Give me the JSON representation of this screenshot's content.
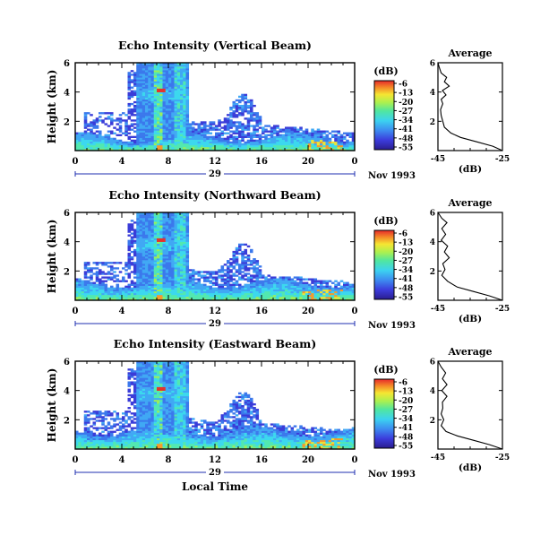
{
  "chart_data": [
    {
      "type": "heatmap",
      "title": "Echo Intensity (Vertical Beam)",
      "ylabel": "Height (km)",
      "yticks": [
        "2",
        "4",
        "6"
      ],
      "xticks": [
        "0",
        "4",
        "8",
        "12",
        "16",
        "20",
        "0"
      ],
      "xlim": [
        0,
        24
      ],
      "ylim": [
        0,
        6
      ],
      "date_label": "29",
      "month_label": "Nov 1993",
      "colorbar": {
        "unit": "(dB)",
        "ticks": [
          "-6",
          "-13",
          "-20",
          "-27",
          "-34",
          "-41",
          "-48",
          "-55"
        ]
      },
      "profile": {
        "title": "Average",
        "xlabel": "(dB)",
        "xticks": [
          "-45",
          "-25"
        ],
        "xlim": [
          -45,
          -25
        ],
        "yticks": [
          "2",
          "4",
          "6"
        ],
        "ylim": [
          0,
          6
        ],
        "points": [
          [
            -25,
            0
          ],
          [
            -28,
            0.3
          ],
          [
            -33,
            0.6
          ],
          [
            -38,
            0.9
          ],
          [
            -41,
            1.2
          ],
          [
            -43,
            1.6
          ],
          [
            -43.5,
            2.0
          ],
          [
            -44,
            2.4
          ],
          [
            -44.2,
            2.8
          ],
          [
            -43.5,
            3.2
          ],
          [
            -44,
            3.5
          ],
          [
            -42.5,
            3.8
          ],
          [
            -43.6,
            4.1
          ],
          [
            -41.5,
            4.4
          ],
          [
            -43,
            4.7
          ],
          [
            -42.3,
            5.0
          ],
          [
            -44,
            5.3
          ],
          [
            -44.6,
            5.7
          ],
          [
            -45,
            6.0
          ]
        ]
      }
    },
    {
      "type": "heatmap",
      "title": "Echo Intensity (Northward Beam)",
      "ylabel": "Height (km)",
      "yticks": [
        "2",
        "4",
        "6"
      ],
      "xticks": [
        "0",
        "4",
        "8",
        "12",
        "16",
        "20",
        "0"
      ],
      "xlim": [
        0,
        24
      ],
      "ylim": [
        0,
        6
      ],
      "date_label": "29",
      "month_label": "Nov 1993",
      "colorbar": {
        "unit": "(dB)",
        "ticks": [
          "-6",
          "-13",
          "-20",
          "-27",
          "-34",
          "-41",
          "-48",
          "-55"
        ]
      },
      "profile": {
        "title": "Average",
        "xlabel": "(dB)",
        "xticks": [
          "-45",
          "-25"
        ],
        "xlim": [
          -45,
          -25
        ],
        "yticks": [
          "2",
          "4",
          "6"
        ],
        "ylim": [
          0,
          6
        ],
        "points": [
          [
            -25,
            0
          ],
          [
            -29,
            0.3
          ],
          [
            -34,
            0.6
          ],
          [
            -39,
            0.9
          ],
          [
            -42,
            1.3
          ],
          [
            -43.8,
            1.7
          ],
          [
            -42.8,
            2.1
          ],
          [
            -43.5,
            2.5
          ],
          [
            -41.5,
            2.9
          ],
          [
            -43,
            3.3
          ],
          [
            -42,
            3.7
          ],
          [
            -44,
            4.1
          ],
          [
            -42.6,
            4.5
          ],
          [
            -43.8,
            4.9
          ],
          [
            -42.2,
            5.3
          ],
          [
            -43.8,
            5.6
          ],
          [
            -45,
            6.0
          ]
        ]
      }
    },
    {
      "type": "heatmap",
      "title": "Echo Intensity (Eastward Beam)",
      "ylabel": "Height (km)",
      "yticks": [
        "2",
        "4",
        "6"
      ],
      "xticks": [
        "0",
        "4",
        "8",
        "12",
        "16",
        "20",
        "0"
      ],
      "xlim": [
        0,
        24
      ],
      "ylim": [
        0,
        6
      ],
      "date_label": "29",
      "month_label": "Nov 1993",
      "xlabel": "Local Time",
      "colorbar": {
        "unit": "(dB)",
        "ticks": [
          "-6",
          "-13",
          "-20",
          "-27",
          "-34",
          "-41",
          "-48",
          "-55"
        ]
      },
      "profile": {
        "title": "Average",
        "xlabel": "(dB)",
        "xticks": [
          "-45",
          "-25"
        ],
        "xlim": [
          -45,
          -25
        ],
        "yticks": [
          "2",
          "4",
          "6"
        ],
        "ylim": [
          0,
          6
        ],
        "points": [
          [
            -25,
            0
          ],
          [
            -29,
            0.3
          ],
          [
            -34,
            0.6
          ],
          [
            -39,
            0.9
          ],
          [
            -42.5,
            1.2
          ],
          [
            -44,
            1.6
          ],
          [
            -43.2,
            2.0
          ],
          [
            -44,
            2.4
          ],
          [
            -43.5,
            2.8
          ],
          [
            -43.6,
            3.2
          ],
          [
            -42.2,
            3.6
          ],
          [
            -43.8,
            4.0
          ],
          [
            -42.2,
            4.4
          ],
          [
            -43.6,
            4.8
          ],
          [
            -42.6,
            5.2
          ],
          [
            -44,
            5.6
          ],
          [
            -45,
            6.0
          ]
        ]
      }
    }
  ]
}
